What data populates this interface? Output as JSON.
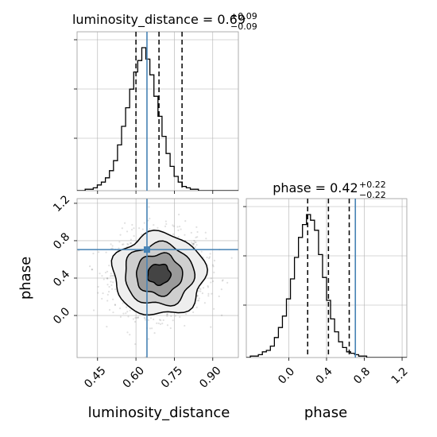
{
  "chart_data": {
    "type": "corner",
    "parameters": [
      "luminosity_distance",
      "phase"
    ],
    "titles": {
      "luminosity_distance": {
        "name": "luminosity_distance",
        "median": "0.69",
        "plus": "+0.09",
        "minus": "−0.09"
      },
      "phase": {
        "name": "phase",
        "median": "0.42",
        "plus": "+0.22",
        "minus": "−0.22"
      }
    },
    "axis_labels": {
      "x_left": "luminosity_distance",
      "x_right": "phase",
      "y_left": "phase"
    },
    "ticks": {
      "luminosity_distance": {
        "values": [
          0.45,
          0.6,
          0.75,
          0.9
        ],
        "labels": [
          "0.45",
          "0.60",
          "0.75",
          "0.90"
        ]
      },
      "phase_x": {
        "values": [
          0.0,
          0.4,
          0.8,
          1.2
        ],
        "labels": [
          "0.0",
          "0.4",
          "0.8",
          "1.2"
        ]
      },
      "phase_y": {
        "values": [
          0.0,
          0.4,
          0.8,
          1.2
        ],
        "labels": [
          "0.0",
          "0.4",
          "0.8",
          "1.2"
        ]
      }
    },
    "ranges": {
      "luminosity_distance": [
        0.37,
        1.0
      ],
      "phase": [
        -0.45,
        1.25
      ]
    },
    "truths": {
      "luminosity_distance": 0.643,
      "phase": 0.705
    },
    "quantiles": {
      "luminosity_distance": [
        0.6,
        0.69,
        0.78
      ],
      "phase": [
        0.2,
        0.42,
        0.64
      ]
    },
    "hist_luminosity_distance": {
      "edges_start": 0.37,
      "bin_width": 0.0158,
      "counts": [
        0,
        0,
        1,
        1,
        2,
        4,
        6,
        9,
        14,
        21,
        32,
        45,
        58,
        71,
        83,
        91,
        100,
        92,
        81,
        66,
        52,
        38,
        26,
        17,
        10,
        6,
        3,
        2,
        1,
        1,
        0,
        0,
        0,
        0,
        0,
        0,
        0,
        0,
        0,
        0
      ]
    },
    "hist_phase": {
      "edges_start": -0.45,
      "bin_width": 0.0425,
      "counts": [
        0,
        1,
        1,
        2,
        4,
        5,
        8,
        14,
        21,
        29,
        41,
        55,
        70,
        84,
        93,
        100,
        96,
        89,
        72,
        56,
        40,
        27,
        18,
        11,
        7,
        4,
        3,
        2,
        1,
        1,
        0,
        0,
        0,
        0,
        0,
        0,
        0,
        0,
        0,
        0
      ]
    },
    "contours_2d": {
      "center": [
        0.69,
        0.44
      ],
      "sigma": [
        0.09,
        0.22
      ],
      "levels_sigma": [
        0.5,
        1.0,
        1.5,
        2.0
      ]
    },
    "colors": {
      "truth": "#4682b4",
      "hist": "#000000",
      "quantile": "#000000",
      "grid": "#b0b0b0"
    }
  }
}
